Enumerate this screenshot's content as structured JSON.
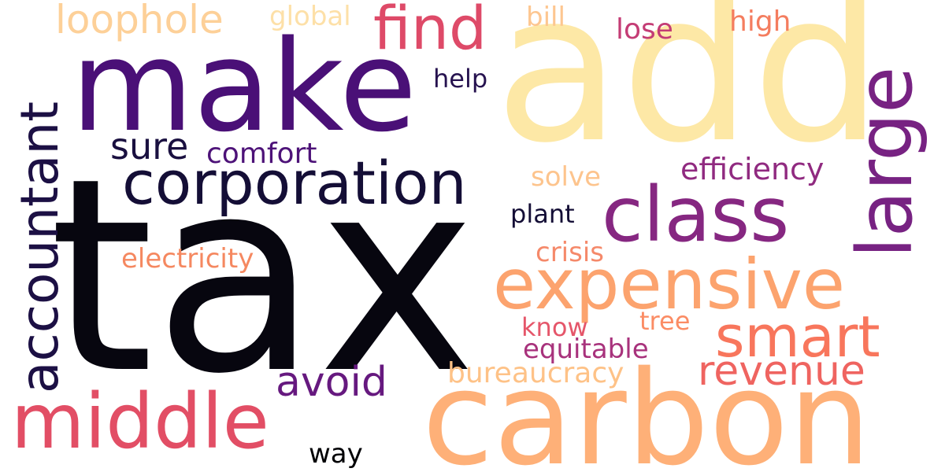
{
  "words": {
    "tax": "tax",
    "add": "add",
    "make": "make",
    "carbon": "carbon",
    "corporation": "corporation",
    "expensive": "expensive",
    "class": "class",
    "large": "large",
    "accountant": "accountant",
    "middle": "middle",
    "find": "find",
    "smart": "smart",
    "revenue": "revenue",
    "avoid": "avoid",
    "sure": "sure",
    "loophole": "loophole",
    "efficiency": "efficiency",
    "comfort": "comfort",
    "electricity": "electricity",
    "bureaucracy": "bureaucracy",
    "equitable": "equitable",
    "crisis": "crisis",
    "global": "global",
    "bill": "bill",
    "lose": "lose",
    "high": "high",
    "help": "help",
    "solve": "solve",
    "plant": "plant",
    "know": "know",
    "tree": "tree",
    "way": "way"
  },
  "colors": {
    "tax": "#07060f",
    "add": "#fde8a6",
    "make": "#4a1077",
    "carbon": "#feb078",
    "corporation": "#140e36",
    "expensive": "#fca36e",
    "class": "#862781",
    "large": "#772282",
    "accountant": "#1c1044",
    "middle": "#e24e65",
    "find": "#de4a68",
    "smart": "#f8765c",
    "revenue": "#ef6460",
    "avoid": "#66197f",
    "sure": "#1a1040",
    "loophole": "#fdd098",
    "efficiency": "#902a80",
    "comfort": "#4d1278",
    "electricity": "#f58860",
    "bureaucracy": "#fec287",
    "equitable": "#a8327c",
    "crisis": "#f5896a",
    "global": "#fde0a8",
    "bill": "#fdc690",
    "lose": "#c43c75",
    "high": "#f47d5f",
    "help": "#26124f",
    "solve": "#fdc48d",
    "plant": "#140e36",
    "know": "#e5566a",
    "tree": "#fb8c64",
    "way": "#000004"
  }
}
